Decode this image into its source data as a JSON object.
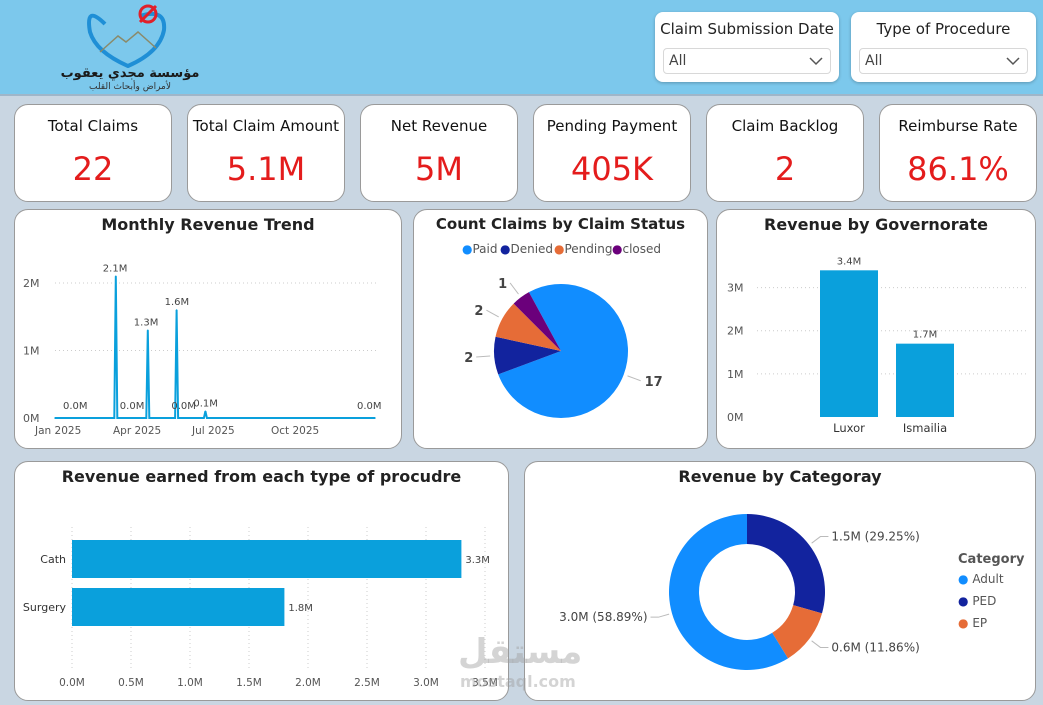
{
  "logo": {
    "title": "مؤسسة مجدي يعقوب",
    "subtitle": "لأمراض وأبحاث القلب"
  },
  "filters": [
    {
      "label": "Claim Submission Date",
      "value": "All"
    },
    {
      "label": "Type of Procedure",
      "value": "All"
    }
  ],
  "kpis": [
    {
      "title": "Total Claims",
      "value": "22"
    },
    {
      "title": "Total Claim Amount",
      "value": "5.1M"
    },
    {
      "title": "Net Revenue",
      "value": "5M"
    },
    {
      "title": "Pending Payment",
      "value": "405K"
    },
    {
      "title": "Claim Backlog",
      "value": "2"
    },
    {
      "title": "Reimburse Rate",
      "value": "86.1%"
    }
  ],
  "colors": {
    "bar": "#0aa0dc",
    "red": "#e41c1c",
    "paid": "#118dff",
    "denied": "#12239e",
    "pending": "#e66c37",
    "closed": "#6b007b"
  },
  "watermark": {
    "main": "مستقل",
    "sub": "mostaql.com"
  },
  "chart_data": [
    {
      "id": "monthly_revenue",
      "type": "line",
      "title": "Monthly Revenue Trend",
      "ylim": [
        0,
        2.4
      ],
      "yticks": [
        {
          "v": 0,
          "label": "0M"
        },
        {
          "v": 1,
          "label": "1M"
        },
        {
          "v": 2,
          "label": "2M"
        }
      ],
      "xticks": [
        "Jan 2025",
        "Apr 2025",
        "Jul 2025",
        "Oct 2025"
      ],
      "points": [
        {
          "x": 0.0,
          "y": 0.0,
          "label": "0.0M"
        },
        {
          "x": 0.19,
          "y": 2.1,
          "label": "2.1M"
        },
        {
          "x": 0.24,
          "y": 0.0,
          "label": "0.0M"
        },
        {
          "x": 0.29,
          "y": 1.3,
          "label": "1.3M"
        },
        {
          "x": 0.38,
          "y": 1.6,
          "label": "1.6M"
        },
        {
          "x": 0.37,
          "y": 0.0,
          "label": "0.0M"
        },
        {
          "x": 0.47,
          "y": 0.1,
          "label": "0.1M"
        },
        {
          "x": 1.0,
          "y": 0.0,
          "label": "0.0M"
        }
      ]
    },
    {
      "id": "claims_by_status",
      "type": "pie",
      "title": "Count Claims by Claim Status",
      "labels": [
        "Paid",
        "Denied",
        "Pending",
        "closed"
      ],
      "values": [
        17,
        2,
        2,
        1
      ]
    },
    {
      "id": "revenue_by_governorate",
      "type": "bar",
      "title": "Revenue by Governorate",
      "categories": [
        "Luxor",
        "Ismailia"
      ],
      "values": [
        3.4,
        1.7
      ],
      "value_labels": [
        "3.4M",
        "1.7M"
      ],
      "ylim": [
        0,
        3.5
      ],
      "yticks": [
        {
          "v": 0,
          "label": "0M"
        },
        {
          "v": 1,
          "label": "1M"
        },
        {
          "v": 2,
          "label": "2M"
        },
        {
          "v": 3,
          "label": "3M"
        }
      ]
    },
    {
      "id": "revenue_by_procedure",
      "type": "bar",
      "orientation": "horizontal",
      "title": "Revenue earned from each type of procudre",
      "categories": [
        "Cath",
        "Surgery"
      ],
      "values": [
        3.3,
        1.8
      ],
      "value_labels": [
        "3.3M",
        "1.8M"
      ],
      "xlim": [
        0,
        3.5
      ],
      "xticks": [
        "0.0M",
        "0.5M",
        "1.0M",
        "1.5M",
        "2.0M",
        "2.5M",
        "3.0M",
        "3.5M"
      ]
    },
    {
      "id": "revenue_by_category",
      "type": "pie",
      "variant": "donut",
      "title": "Revenue by Categoray",
      "legend_title": "Category",
      "labels": [
        "Adult",
        "PED",
        "EP"
      ],
      "values": [
        3.0,
        1.5,
        0.6
      ],
      "value_labels": [
        "3.0M (58.89%)",
        "1.5M (29.25%)",
        "0.6M (11.86%)"
      ]
    }
  ]
}
